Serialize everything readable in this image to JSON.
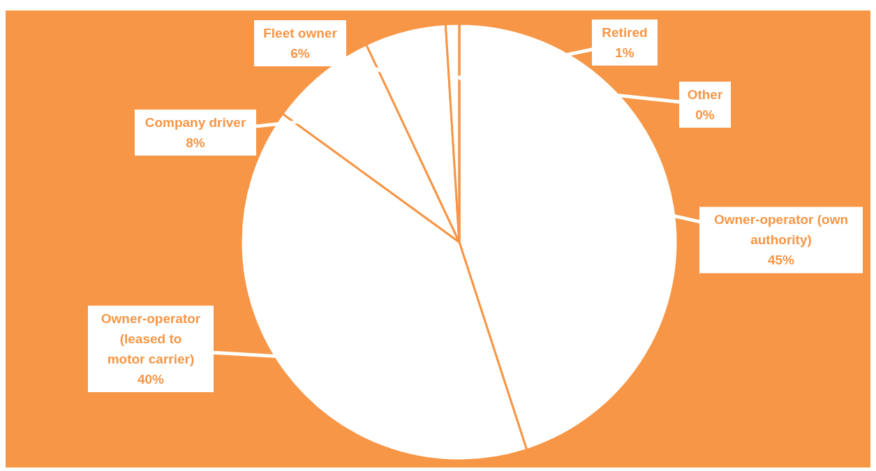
{
  "chart_data": {
    "type": "pie",
    "categories": [
      "Owner-operator (own authority)",
      "Owner-operator (leased to motor carrier)",
      "Company driver",
      "Fleet owner",
      "Retired",
      "Other"
    ],
    "values": [
      45,
      40,
      8,
      6,
      1,
      0
    ],
    "colors": [
      "#ffffff",
      "#ffffff",
      "#ffffff",
      "#ffffff",
      "#ffffff",
      "#ffffff"
    ],
    "value_labels": [
      "45%",
      "40%",
      "8%",
      "6%",
      "1%",
      "0%"
    ]
  }
}
